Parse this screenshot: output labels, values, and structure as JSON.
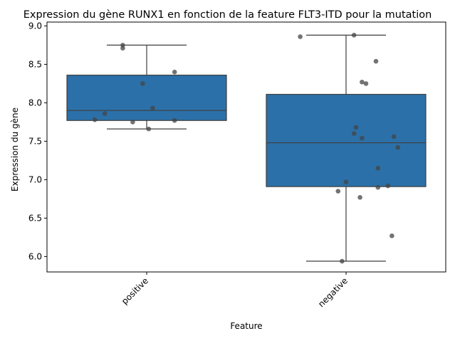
{
  "chart_data": {
    "type": "box",
    "title": "Expression du gène RUNX1 en fonction de la feature FLT3-ITD pour la mutation",
    "xlabel": "Feature",
    "ylabel": "Expression du gène",
    "ylim": [
      5.8,
      9.05
    ],
    "yticks": [
      "6.0",
      "6.5",
      "7.0",
      "7.5",
      "8.0",
      "8.5",
      "9.0"
    ],
    "categories": [
      "positive",
      "negative"
    ],
    "box_color": "#2b70a8",
    "point_color": "#444444",
    "boxes": [
      {
        "name": "positive",
        "whisker_low": 7.66,
        "q1": 7.77,
        "median": 7.9,
        "q3": 8.36,
        "whisker_high": 8.75
      },
      {
        "name": "negative",
        "whisker_low": 5.94,
        "q1": 6.91,
        "median": 7.48,
        "q3": 8.11,
        "whisker_high": 8.88
      }
    ],
    "points": [
      {
        "category": "positive",
        "values": [
          8.75,
          8.71,
          8.4,
          8.25,
          7.93,
          7.86,
          7.78,
          7.77,
          7.75,
          7.66
        ],
        "jitter": [
          -0.12,
          -0.12,
          0.14,
          -0.02,
          0.03,
          -0.21,
          -0.26,
          0.14,
          -0.07,
          0.01
        ]
      },
      {
        "category": "negative",
        "values": [
          8.88,
          8.86,
          8.54,
          8.27,
          8.25,
          7.68,
          7.6,
          7.56,
          7.54,
          7.42,
          7.15,
          6.97,
          6.92,
          6.9,
          6.85,
          6.77,
          6.27,
          5.94
        ],
        "jitter": [
          0.04,
          -0.23,
          0.15,
          0.08,
          0.1,
          0.05,
          0.04,
          0.24,
          0.08,
          0.26,
          0.16,
          0.0,
          0.21,
          0.16,
          -0.04,
          0.07,
          0.23,
          -0.02
        ]
      }
    ]
  }
}
